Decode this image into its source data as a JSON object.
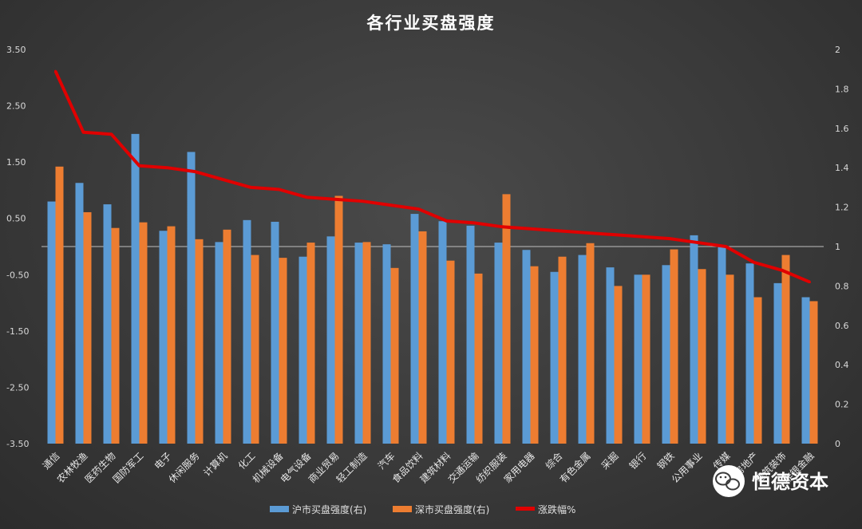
{
  "chart_data": {
    "type": "bar",
    "title": "各行业买盘强度",
    "categories": [
      "通信",
      "农林牧渔",
      "医药生物",
      "国防军工",
      "电子",
      "休闲服务",
      "计算机",
      "化工",
      "机械设备",
      "电气设备",
      "商业贸易",
      "轻工制造",
      "汽车",
      "食品饮料",
      "建筑材料",
      "交通运输",
      "纺织服装",
      "家用电器",
      "综合",
      "有色金属",
      "采掘",
      "银行",
      "钢铁",
      "公用事业",
      "传媒",
      "房地产",
      "建筑装饰",
      "非银金融"
    ],
    "series": [
      {
        "name": "沪市买盘强度(右)",
        "type": "bar",
        "axis": "left",
        "color": "#5b9bd5",
        "values": [
          0.8,
          1.13,
          0.75,
          2.0,
          0.28,
          1.68,
          0.08,
          0.47,
          0.44,
          -0.18,
          0.18,
          0.07,
          0.04,
          0.58,
          0.45,
          0.37,
          0.07,
          -0.06,
          -0.45,
          -0.15,
          -0.37,
          -0.5,
          -0.33,
          0.2,
          0.0,
          -0.3,
          -0.65,
          -0.9
        ]
      },
      {
        "name": "深市买盘强度(右)",
        "type": "bar",
        "axis": "left",
        "color": "#ed7d31",
        "values": [
          1.42,
          0.61,
          0.33,
          0.43,
          0.36,
          0.13,
          0.3,
          -0.15,
          -0.2,
          0.07,
          0.9,
          0.08,
          -0.38,
          0.27,
          -0.25,
          -0.48,
          0.93,
          -0.35,
          -0.18,
          0.06,
          -0.7,
          -0.5,
          -0.05,
          -0.4,
          -0.5,
          -0.9,
          -0.15,
          -0.97
        ]
      },
      {
        "name": "涨跌幅%",
        "type": "line",
        "axis": "right",
        "color": "#e00000",
        "values": [
          1.89,
          1.58,
          1.57,
          1.41,
          1.4,
          1.38,
          1.34,
          1.3,
          1.29,
          1.25,
          1.24,
          1.23,
          1.21,
          1.19,
          1.13,
          1.12,
          1.1,
          1.09,
          1.08,
          1.07,
          1.06,
          1.05,
          1.04,
          1.02,
          1.0,
          0.92,
          0.88,
          0.82
        ]
      }
    ],
    "y_left": {
      "ylim": [
        -3.5,
        3.5
      ],
      "ticks": [
        "3.50",
        "2.50",
        "1.50",
        "0.50",
        "-0.50",
        "-1.50",
        "-2.50",
        "-3.50"
      ]
    },
    "y_right": {
      "ylim": [
        0,
        2
      ],
      "ticks": [
        "2",
        "1.8",
        "1.6",
        "1.4",
        "1.2",
        "1",
        "0.8",
        "0.6",
        "0.4",
        "0.2",
        "0"
      ]
    },
    "grid": false,
    "legend_position": "bottom"
  },
  "watermark": {
    "text": "恒德资本",
    "icon": "wechat-icon"
  },
  "colors": {
    "background": "#3b3b3b",
    "zero_line": "#bfbfbf"
  }
}
